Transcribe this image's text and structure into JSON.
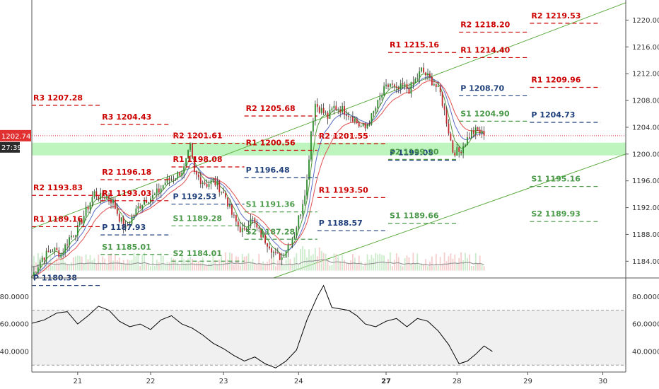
{
  "chart_data": {
    "type": "candlestick",
    "colors": {
      "up": "#2e8b2e",
      "down": "#c0282d",
      "resistance": "#cc0000",
      "support": "#4a9a4a",
      "pivot": "#1f3f7a",
      "channel": "#5aaa3c",
      "zone": "#a8f0a8",
      "ema_fast": "#4f9a3a",
      "ema_mid": "#5a6cc4",
      "ema_slow": "#e05050",
      "oscillator": "#000000",
      "volume_avg": "#999999",
      "price_line": "#e03030"
    },
    "price_axis": {
      "ticks": [
        "1220.00",
        "1216.00",
        "1212.00",
        "1208.00",
        "1204.00",
        "1200.00",
        "1196.00",
        "1192.00",
        "1188.00",
        "1184.00"
      ],
      "ylim": [
        1181.5,
        1223.0
      ]
    },
    "current_price": {
      "value": 1202.74,
      "label": "1202.74",
      "countdown": "27:39"
    },
    "x_axis": {
      "ticks": [
        "21",
        "22",
        "23",
        "24",
        "27",
        "28",
        "29",
        "30"
      ],
      "tick_bars": [
        22,
        57,
        92,
        128,
        170,
        204,
        238,
        274
      ],
      "bold": [
        "27"
      ],
      "range": [
        0,
        285
      ]
    },
    "zone": {
      "from": 1199.8,
      "to": 1201.7
    },
    "channel": [
      {
        "from": [
          0,
          1188.9
        ],
        "to": [
          285,
          1222.6
        ]
      },
      {
        "from": [
          116,
          1181.5
        ],
        "to": [
          285,
          1200.0
        ]
      }
    ],
    "pivot_levels": [
      {
        "label": "R3 1207.28",
        "value": 1207.28,
        "start": 0,
        "end": 33,
        "kind": "resistance"
      },
      {
        "label": "R2 1193.83",
        "value": 1193.83,
        "start": 0,
        "end": 33,
        "kind": "resistance"
      },
      {
        "label": "R1 1189.16",
        "value": 1189.16,
        "start": 0,
        "end": 33,
        "kind": "resistance"
      },
      {
        "label": "P 1180.38",
        "value": 1180.38,
        "start": 0,
        "end": 33,
        "kind": "pivot"
      },
      {
        "label": "R3 1204.43",
        "value": 1204.43,
        "start": 33,
        "end": 67,
        "kind": "resistance"
      },
      {
        "label": "R2 1196.18",
        "value": 1196.18,
        "start": 33,
        "end": 67,
        "kind": "resistance"
      },
      {
        "label": "R1 1193.03",
        "value": 1193.03,
        "start": 33,
        "end": 67,
        "kind": "resistance"
      },
      {
        "label": "P 1187.93",
        "value": 1187.93,
        "start": 33,
        "end": 67,
        "kind": "pivot"
      },
      {
        "label": "S1 1185.01",
        "value": 1185.01,
        "start": 33,
        "end": 67,
        "kind": "support"
      },
      {
        "label": "R2 1201.61",
        "value": 1201.61,
        "start": 67,
        "end": 102,
        "kind": "resistance"
      },
      {
        "label": "R1 1198.08",
        "value": 1198.08,
        "start": 67,
        "end": 102,
        "kind": "resistance"
      },
      {
        "label": "P 1192.53",
        "value": 1192.53,
        "start": 67,
        "end": 102,
        "kind": "pivot"
      },
      {
        "label": "S1 1189.28",
        "value": 1189.28,
        "start": 67,
        "end": 102,
        "kind": "support"
      },
      {
        "label": "S2 1184.01",
        "value": 1184.01,
        "start": 67,
        "end": 102,
        "kind": "support"
      },
      {
        "label": "R2 1205.68",
        "value": 1205.68,
        "start": 102,
        "end": 137,
        "kind": "resistance"
      },
      {
        "label": "R1 1200.56",
        "value": 1200.56,
        "start": 102,
        "end": 137,
        "kind": "resistance"
      },
      {
        "label": "P 1196.48",
        "value": 1196.48,
        "start": 102,
        "end": 137,
        "kind": "pivot"
      },
      {
        "label": "S1 1191.36",
        "value": 1191.36,
        "start": 102,
        "end": 137,
        "kind": "support"
      },
      {
        "label": "S2 1187.28",
        "value": 1187.28,
        "start": 102,
        "end": 137,
        "kind": "support"
      },
      {
        "label": "R2 1201.55",
        "value": 1201.55,
        "start": 137,
        "end": 171,
        "kind": "resistance"
      },
      {
        "label": "R1 1193.50",
        "value": 1193.5,
        "start": 137,
        "end": 171,
        "kind": "resistance"
      },
      {
        "label": "P 1188.57",
        "value": 1188.57,
        "start": 137,
        "end": 171,
        "kind": "pivot"
      },
      {
        "label": "R1 1215.16",
        "value": 1215.16,
        "start": 171,
        "end": 205,
        "kind": "resistance"
      },
      {
        "label": "P 1199.08",
        "value": 1199.08,
        "start": 171,
        "end": 205,
        "kind": "pivot"
      },
      {
        "label": "S2 1199.20",
        "value": 1199.2,
        "start": 171,
        "end": 205,
        "kind": "support"
      },
      {
        "label": "S1 1189.66",
        "value": 1189.66,
        "start": 171,
        "end": 205,
        "kind": "support"
      },
      {
        "label": "R2 1218.20",
        "value": 1218.2,
        "start": 205,
        "end": 239,
        "kind": "resistance"
      },
      {
        "label": "R1 1214.40",
        "value": 1214.4,
        "start": 205,
        "end": 239,
        "kind": "resistance"
      },
      {
        "label": "P 1208.70",
        "value": 1208.7,
        "start": 205,
        "end": 239,
        "kind": "pivot"
      },
      {
        "label": "S1 1204.90",
        "value": 1204.9,
        "start": 205,
        "end": 239,
        "kind": "support"
      },
      {
        "label": "R2 1219.53",
        "value": 1219.53,
        "start": 239,
        "end": 273,
        "kind": "resistance"
      },
      {
        "label": "R1 1209.96",
        "value": 1209.96,
        "start": 239,
        "end": 273,
        "kind": "resistance"
      },
      {
        "label": "P 1204.73",
        "value": 1204.73,
        "start": 239,
        "end": 273,
        "kind": "pivot"
      },
      {
        "label": "S1 1195.16",
        "value": 1195.16,
        "start": 239,
        "end": 273,
        "kind": "support"
      },
      {
        "label": "S2 1189.93",
        "value": 1189.93,
        "start": 239,
        "end": 273,
        "kind": "support"
      }
    ],
    "price_path": [
      [
        0,
        1181.8
      ],
      [
        5,
        1184.5
      ],
      [
        10,
        1185.8
      ],
      [
        14,
        1185.0
      ],
      [
        18,
        1187.5
      ],
      [
        22,
        1188.8
      ],
      [
        26,
        1191.5
      ],
      [
        30,
        1194.2
      ],
      [
        33,
        1193.5
      ],
      [
        36,
        1193.8
      ],
      [
        39,
        1192.8
      ],
      [
        42,
        1190.5
      ],
      [
        45,
        1188.8
      ],
      [
        48,
        1190.5
      ],
      [
        51,
        1192.0
      ],
      [
        54,
        1193.2
      ],
      [
        58,
        1193.6
      ],
      [
        61,
        1194.5
      ],
      [
        64,
        1195.8
      ],
      [
        67,
        1196.3
      ],
      [
        70,
        1197.0
      ],
      [
        73,
        1197.8
      ],
      [
        76,
        1201.0
      ],
      [
        78,
        1197.0
      ],
      [
        81,
        1196.2
      ],
      [
        84,
        1195.5
      ],
      [
        87,
        1196.0
      ],
      [
        90,
        1195.0
      ],
      [
        93,
        1193.6
      ],
      [
        96,
        1191.0
      ],
      [
        99,
        1189.2
      ],
      [
        102,
        1188.2
      ],
      [
        105,
        1190.8
      ],
      [
        108,
        1188.8
      ],
      [
        111,
        1187.5
      ],
      [
        114,
        1186.5
      ],
      [
        117,
        1184.8
      ],
      [
        120,
        1184.6
      ],
      [
        123,
        1186.5
      ],
      [
        126,
        1188.2
      ],
      [
        129,
        1191.5
      ],
      [
        132,
        1196.0
      ],
      [
        134,
        1203.5
      ],
      [
        136,
        1207.5
      ],
      [
        139,
        1206.5
      ],
      [
        142,
        1205.5
      ],
      [
        145,
        1207.0
      ],
      [
        148,
        1206.8
      ],
      [
        151,
        1206.3
      ],
      [
        154,
        1205.5
      ],
      [
        157,
        1204.3
      ],
      [
        160,
        1203.8
      ],
      [
        163,
        1205.5
      ],
      [
        166,
        1207.5
      ],
      [
        169,
        1209.5
      ],
      [
        172,
        1210.5
      ],
      [
        175,
        1209.3
      ],
      [
        178,
        1210.2
      ],
      [
        181,
        1209.6
      ],
      [
        184,
        1211.0
      ],
      [
        187,
        1212.5
      ],
      [
        190,
        1211.5
      ],
      [
        193,
        1210.6
      ],
      [
        196,
        1209.0
      ],
      [
        199,
        1205.0
      ],
      [
        202,
        1200.5
      ],
      [
        205,
        1200.3
      ],
      [
        208,
        1201.8
      ],
      [
        211,
        1203.2
      ],
      [
        214,
        1203.5
      ],
      [
        217,
        1202.7
      ]
    ],
    "day_bars": {
      "21": [
        22,
        57
      ],
      "22": [
        57,
        92
      ],
      "23": [
        92,
        128
      ],
      "24": [
        128,
        170
      ],
      "27": [
        170,
        204
      ],
      "28": [
        204,
        238
      ],
      "29": [
        238,
        274
      ]
    },
    "oscillator": {
      "ticks": [
        "80.0000",
        "60.0000",
        "40.0000"
      ],
      "ylim": [
        25,
        92
      ],
      "band": [
        30,
        70
      ],
      "values": [
        [
          0,
          60.5
        ],
        [
          6,
          63
        ],
        [
          12,
          68
        ],
        [
          17,
          69
        ],
        [
          22,
          60
        ],
        [
          27,
          66
        ],
        [
          32,
          73
        ],
        [
          37,
          70
        ],
        [
          42,
          62
        ],
        [
          47,
          58
        ],
        [
          52,
          60
        ],
        [
          57,
          56
        ],
        [
          62,
          63
        ],
        [
          67,
          66
        ],
        [
          72,
          60
        ],
        [
          77,
          57
        ],
        [
          82,
          52
        ],
        [
          87,
          46
        ],
        [
          92,
          42
        ],
        [
          97,
          37
        ],
        [
          102,
          33
        ],
        [
          107,
          36
        ],
        [
          112,
          31
        ],
        [
          117,
          28
        ],
        [
          122,
          33
        ],
        [
          127,
          41
        ],
        [
          132,
          63
        ],
        [
          137,
          80
        ],
        [
          140,
          88
        ],
        [
          144,
          72
        ],
        [
          148,
          71
        ],
        [
          152,
          70
        ],
        [
          156,
          66
        ],
        [
          160,
          60
        ],
        [
          165,
          58
        ],
        [
          170,
          62
        ],
        [
          175,
          64
        ],
        [
          180,
          58
        ],
        [
          185,
          64
        ],
        [
          190,
          62
        ],
        [
          195,
          55
        ],
        [
          200,
          45
        ],
        [
          205,
          31
        ],
        [
          209,
          33
        ],
        [
          213,
          38
        ],
        [
          217,
          44
        ],
        [
          221,
          40
        ]
      ]
    }
  }
}
